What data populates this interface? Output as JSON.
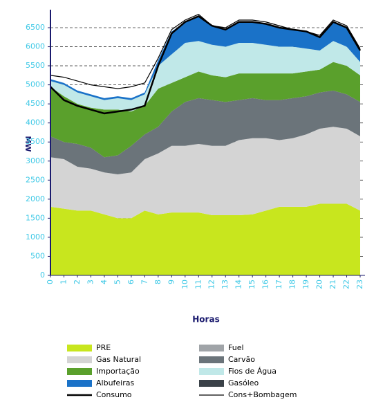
{
  "chart_data": {
    "type": "stacked_area",
    "y_label": "MW",
    "x_label": "Horas",
    "x": [
      0,
      1,
      2,
      3,
      4,
      5,
      6,
      7,
      8,
      9,
      10,
      11,
      12,
      13,
      14,
      15,
      16,
      17,
      18,
      19,
      20,
      21,
      22,
      23
    ],
    "xlim": [
      0,
      23
    ],
    "xticks": [
      0,
      1,
      2,
      3,
      4,
      5,
      6,
      7,
      8,
      9,
      10,
      11,
      12,
      13,
      14,
      15,
      16,
      17,
      18,
      19,
      20,
      21,
      22,
      23
    ],
    "ylim": [
      0,
      6500
    ],
    "yticks": [
      0,
      500,
      1000,
      1500,
      2000,
      2500,
      3000,
      3500,
      4000,
      4500,
      5000,
      5500,
      6000,
      6500
    ],
    "grid": true,
    "series": [
      {
        "name": "PRE",
        "color": "#c8e61e",
        "values": [
          1800,
          1750,
          1700,
          1700,
          1600,
          1500,
          1500,
          1700,
          1600,
          1650,
          1650,
          1650,
          1580,
          1580,
          1580,
          1600,
          1700,
          1800,
          1800,
          1800,
          1880,
          1880,
          1880,
          1700
        ]
      },
      {
        "name": "Gas Natural",
        "color": "#d4d4d4",
        "values": [
          1300,
          1300,
          1150,
          1100,
          1100,
          1150,
          1200,
          1350,
          1600,
          1750,
          1750,
          1800,
          1820,
          1820,
          1970,
          2000,
          1900,
          1750,
          1800,
          1900,
          1970,
          2020,
          1970,
          1950
        ]
      },
      {
        "name": "Fuel",
        "color": "#a0a4a8",
        "values": [
          0,
          0,
          0,
          0,
          0,
          0,
          0,
          0,
          0,
          0,
          0,
          0,
          0,
          0,
          0,
          0,
          0,
          0,
          0,
          0,
          0,
          0,
          0,
          0
        ]
      },
      {
        "name": "Carvão",
        "color": "#6b747a",
        "values": [
          550,
          450,
          600,
          550,
          400,
          500,
          700,
          650,
          700,
          900,
          1150,
          1200,
          1200,
          1150,
          1050,
          1050,
          1000,
          1050,
          1050,
          1000,
          950,
          950,
          900,
          900
        ]
      },
      {
        "name": "Gasóleo",
        "color": "#3a4148",
        "values": [
          0,
          0,
          0,
          0,
          0,
          0,
          0,
          0,
          0,
          0,
          0,
          0,
          0,
          0,
          0,
          0,
          0,
          0,
          0,
          0,
          0,
          0,
          0,
          0
        ]
      },
      {
        "name": "Importação",
        "color": "#5aa02c",
        "values": [
          1300,
          1200,
          1050,
          1050,
          1250,
          1200,
          900,
          750,
          1000,
          750,
          650,
          700,
          650,
          650,
          700,
          650,
          700,
          700,
          650,
          650,
          600,
          750,
          750,
          700
        ]
      },
      {
        "name": "Fios de Água",
        "color": "#c0e8e8",
        "values": [
          150,
          300,
          300,
          300,
          250,
          300,
          300,
          300,
          600,
          750,
          900,
          800,
          800,
          800,
          800,
          800,
          750,
          700,
          700,
          600,
          500,
          550,
          500,
          350
        ]
      },
      {
        "name": "Albufeiras",
        "color": "#1a72c8",
        "values": [
          50,
          50,
          50,
          50,
          50,
          50,
          50,
          50,
          150,
          600,
          550,
          650,
          500,
          450,
          550,
          550,
          550,
          500,
          450,
          450,
          350,
          500,
          500,
          300
        ]
      }
    ],
    "lines": [
      {
        "name": "Consumo",
        "color": "#000000",
        "values": [
          4950,
          4600,
          4450,
          4350,
          4250,
          4300,
          4350,
          4450,
          5500,
          6350,
          6650,
          6800,
          6550,
          6450,
          6650,
          6650,
          6600,
          6500,
          6450,
          6400,
          6250,
          6650,
          6500,
          5900
        ]
      },
      {
        "name": "Cons+Bombagem",
        "color": "#000000",
        "values": [
          5250,
          5200,
          5100,
          5000,
          4950,
          4900,
          4950,
          5050,
          5700,
          6450,
          6700,
          6850,
          6550,
          6500,
          6700,
          6700,
          6650,
          6550,
          6450,
          6400,
          6300,
          6700,
          6550,
          5950
        ]
      }
    ]
  }
}
